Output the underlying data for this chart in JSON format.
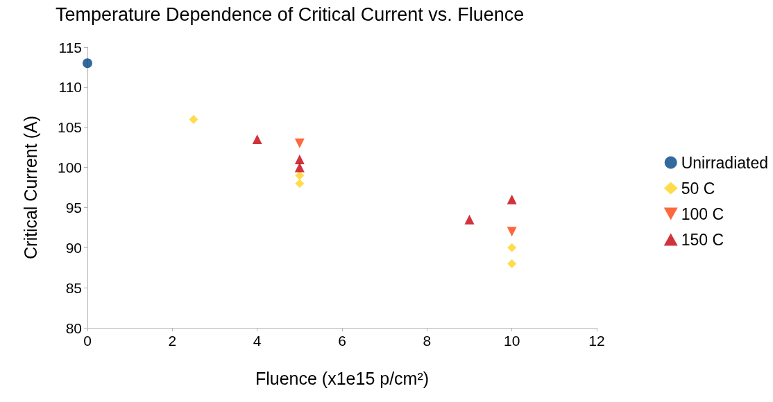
{
  "chart_data": {
    "type": "scatter",
    "title": "Temperature Dependence of Critical Current vs. Fluence",
    "xlabel": "Fluence (x1e15 p/cm²)",
    "ylabel": "Critical Current (A)",
    "xlim": [
      0,
      12
    ],
    "xticks": [
      0,
      2,
      4,
      6,
      8,
      10,
      12
    ],
    "ylim": [
      80,
      115
    ],
    "yticks": [
      80,
      85,
      90,
      95,
      100,
      105,
      110,
      115
    ],
    "grid": false,
    "legend": "right",
    "series": [
      {
        "name": "Unirradiated",
        "color": "#004586",
        "marker": "circle",
        "x": [
          0
        ],
        "values": [
          113
        ]
      },
      {
        "name": "50 C",
        "color": "#ffd320",
        "marker": "diamond",
        "x": [
          2.5,
          5,
          5,
          10,
          10
        ],
        "values": [
          106,
          99,
          98,
          90,
          88
        ]
      },
      {
        "name": "100 C",
        "color": "#ff420e",
        "marker": "triangle-down",
        "x": [
          5,
          10
        ],
        "values": [
          103,
          92
        ]
      },
      {
        "name": "150 C",
        "color": "#c5000b",
        "marker": "triangle",
        "x": [
          4,
          5,
          5,
          9,
          10
        ],
        "values": [
          103.5,
          101,
          100,
          93.5,
          96
        ]
      }
    ]
  }
}
